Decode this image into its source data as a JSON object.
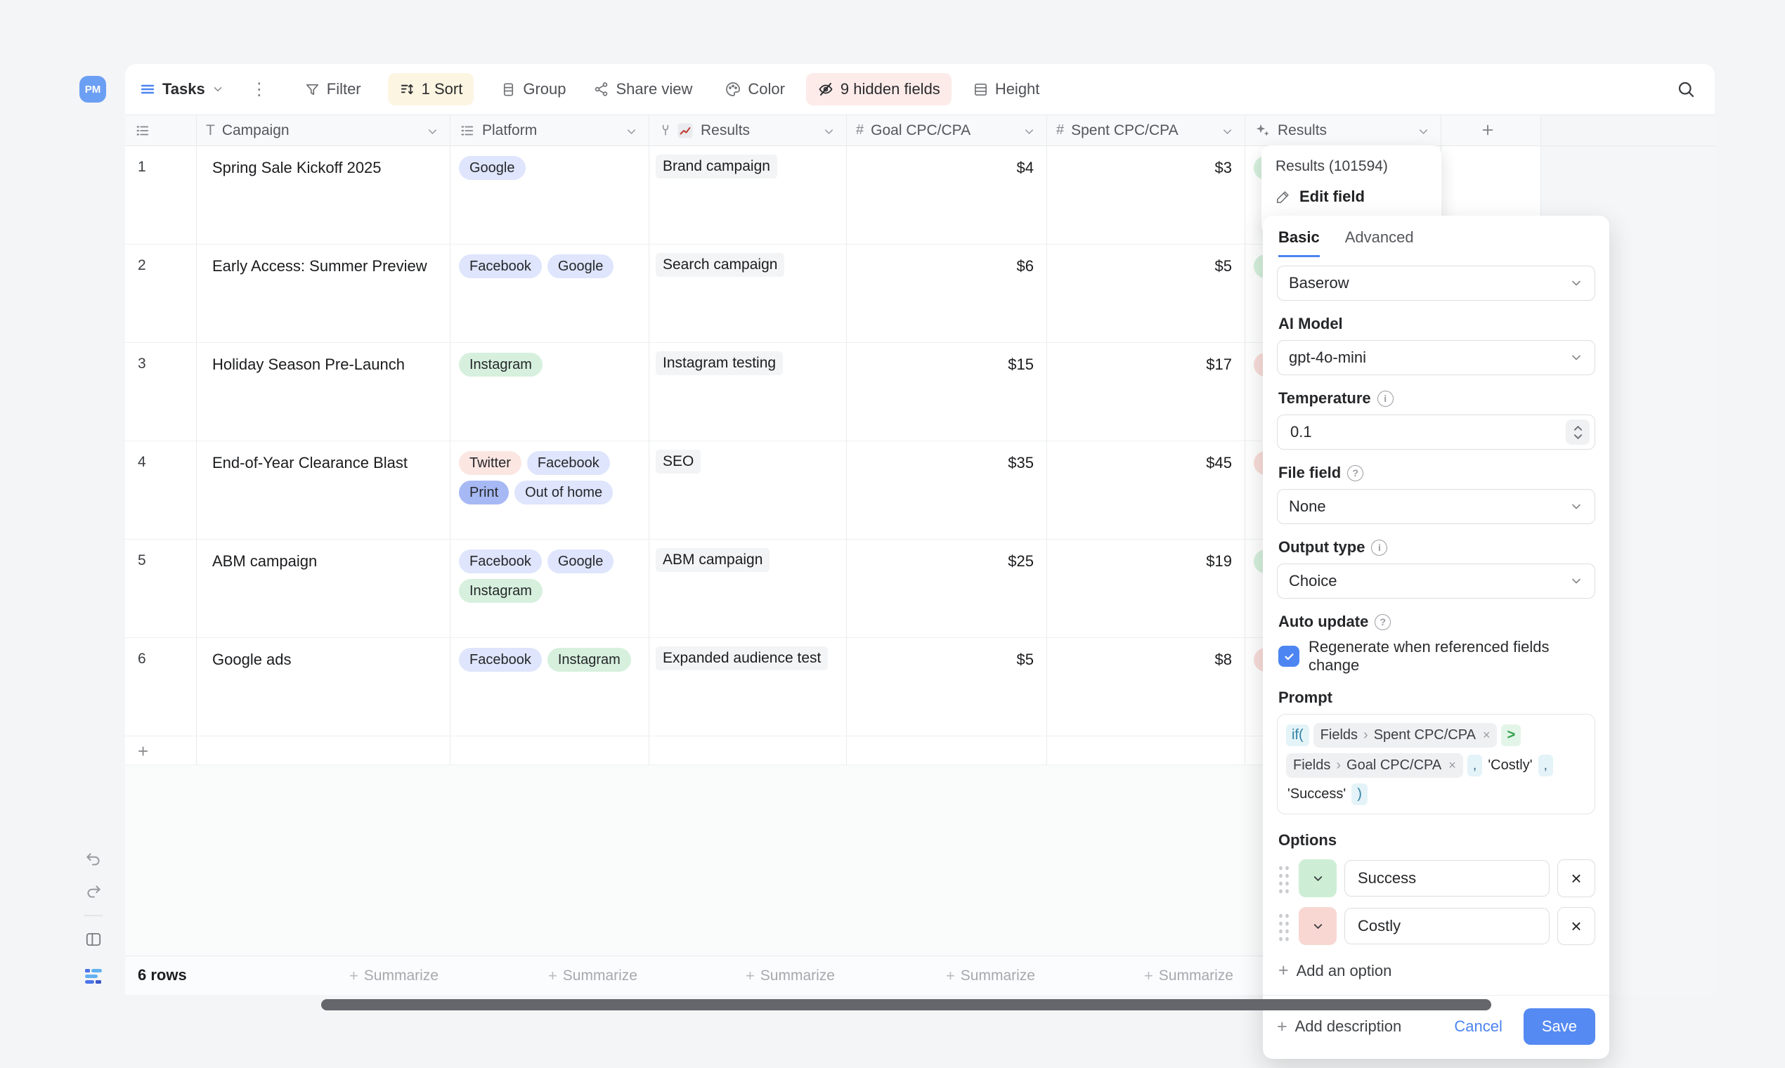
{
  "app": {
    "avatar": "PM"
  },
  "toolbar": {
    "view_name": "Tasks",
    "filter": "Filter",
    "sort": "1 Sort",
    "group": "Group",
    "share": "Share view",
    "color": "Color",
    "hidden_fields": "9 hidden fields",
    "height": "Height"
  },
  "table": {
    "columns": [
      {
        "key": "campaign",
        "label": "Campaign",
        "icon": "text-field-icon"
      },
      {
        "key": "platform",
        "label": "Platform",
        "icon": "multi-select-icon"
      },
      {
        "key": "results",
        "label": "Results",
        "icon": "chart-field-icon"
      },
      {
        "key": "goal",
        "label": "Goal CPC/CPA",
        "icon": "number-field-icon"
      },
      {
        "key": "spent",
        "label": "Spent CPC/CPA",
        "icon": "number-field-icon"
      },
      {
        "key": "results_ai",
        "label": "Results",
        "icon": "ai-field-icon"
      }
    ],
    "rows": [
      {
        "num": "1",
        "campaign": "Spring Sale Kickoff 2025",
        "platforms": [
          {
            "label": "Google",
            "color": "lavender"
          }
        ],
        "results": "Brand campaign",
        "goal": "$4",
        "spent": "$3",
        "ai": {
          "label": "Success",
          "color": "green"
        }
      },
      {
        "num": "2",
        "campaign": "Early Access: Summer Preview",
        "platforms": [
          {
            "label": "Facebook",
            "color": "lavender"
          },
          {
            "label": "Google",
            "color": "lavender"
          }
        ],
        "results": "Search campaign",
        "goal": "$6",
        "spent": "$5",
        "ai": {
          "label": "Success",
          "color": "green"
        }
      },
      {
        "num": "3",
        "campaign": "Holiday Season Pre-Launch",
        "platforms": [
          {
            "label": "Instagram",
            "color": "green"
          }
        ],
        "results": "Instagram testing",
        "goal": "$15",
        "spent": "$17",
        "ai": {
          "label": "Costly",
          "color": "red"
        }
      },
      {
        "num": "4",
        "campaign": "End-of-Year Clearance Blast",
        "platforms": [
          {
            "label": "Twitter",
            "color": "pink"
          },
          {
            "label": "Facebook",
            "color": "lavender"
          },
          {
            "label": "Print",
            "color": "blue"
          },
          {
            "label": "Out of home",
            "color": "lavender"
          }
        ],
        "results": "SEO",
        "goal": "$35",
        "spent": "$45",
        "ai": {
          "label": "Costly",
          "color": "red"
        }
      },
      {
        "num": "5",
        "campaign": "ABM campaign",
        "platforms": [
          {
            "label": "Facebook",
            "color": "lavender"
          },
          {
            "label": "Google",
            "color": "lavender"
          },
          {
            "label": "Instagram",
            "color": "green"
          }
        ],
        "results": "ABM campaign",
        "goal": "$25",
        "spent": "$19",
        "ai": {
          "label": "Success",
          "color": "green"
        }
      },
      {
        "num": "6",
        "campaign": "Google ads",
        "platforms": [
          {
            "label": "Facebook",
            "color": "lavender"
          },
          {
            "label": "Instagram",
            "color": "green"
          }
        ],
        "results": "Expanded audience test",
        "goal": "$5",
        "spent": "$8",
        "ai": {
          "label": "Costly",
          "color": "red"
        }
      }
    ],
    "row_count": "6 rows",
    "summarize_label": "Summarize"
  },
  "context_menu": {
    "title": "Results (101594)",
    "edit_field": "Edit field"
  },
  "panel": {
    "tabs": [
      {
        "label": "Basic",
        "active": true
      },
      {
        "label": "Advanced",
        "active": false
      }
    ],
    "provider": "Baserow",
    "ai_model_label": "AI Model",
    "ai_model": "gpt-4o-mini",
    "temperature_label": "Temperature",
    "temperature": "0.1",
    "file_field_label": "File field",
    "file_field": "None",
    "output_type_label": "Output type",
    "output_type": "Choice",
    "auto_update_label": "Auto update",
    "auto_update_option": "Regenerate when referenced fields change",
    "auto_update_checked": true,
    "prompt_label": "Prompt",
    "prompt_tokens": [
      {
        "type": "fn",
        "text": "if("
      },
      {
        "type": "chip",
        "parts": [
          "Fields",
          "Spent CPC/CPA"
        ]
      },
      {
        "type": "op",
        "text": ">"
      },
      {
        "type": "chip",
        "parts": [
          "Fields",
          "Goal CPC/CPA"
        ]
      },
      {
        "type": "comma",
        "text": ","
      },
      {
        "type": "str",
        "text": "'Costly'"
      },
      {
        "type": "comma",
        "text": ","
      },
      {
        "type": "str",
        "text": "'Success'"
      },
      {
        "type": "paren",
        "text": ")"
      }
    ],
    "options_label": "Options",
    "options": [
      {
        "label": "Success",
        "color": "#cdeed5"
      },
      {
        "label": "Costly",
        "color": "#f8d7d2"
      }
    ],
    "add_option": "Add an option",
    "add_description": "Add description",
    "cancel": "Cancel",
    "save": "Save"
  },
  "colors": {
    "accent_blue": "#4c84f1",
    "save_button": "#558af2",
    "sort_highlight": "#fcf5e2",
    "hidden_fields_highlight": "#fcebe9",
    "tag_lavender": "#dee5fc",
    "tag_green": "#d6f0dd",
    "tag_pink": "#fbe6e2",
    "tag_blue": "#a7b9f4",
    "scrollbar": "#64666b"
  }
}
